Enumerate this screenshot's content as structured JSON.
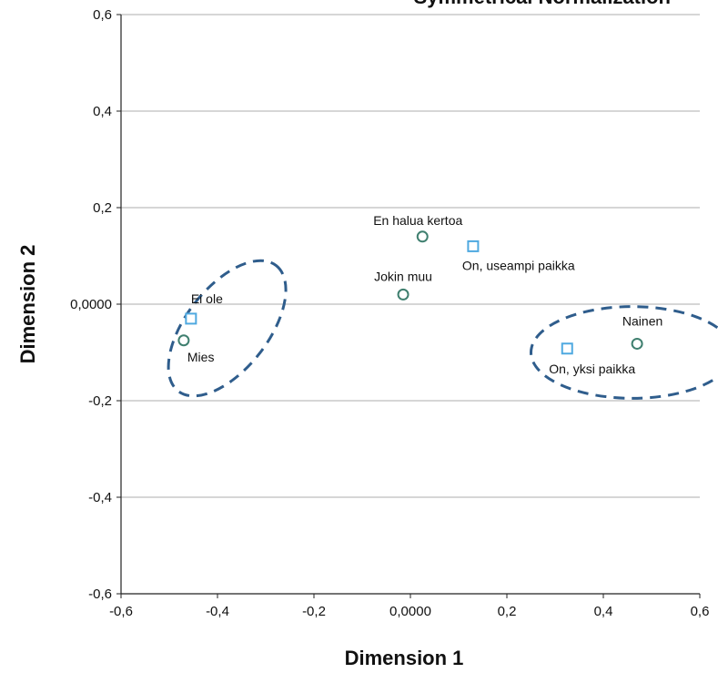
{
  "chart_data": {
    "type": "scatter",
    "title": "Symmetrical Normalization",
    "xlabel": "Dimension 1",
    "ylabel": "Dimension 2",
    "xlim": [
      -0.6,
      0.6
    ],
    "ylim": [
      -0.6,
      0.6
    ],
    "x_ticks": [
      "-0,6",
      "-0,4",
      "-0,2",
      "0,0000",
      "0,2",
      "0,4",
      "0,6"
    ],
    "y_ticks": [
      "0,6",
      "0,4",
      "0,2",
      "0,0000",
      "-0,2",
      "-0,4",
      "-0,6"
    ],
    "grid": "horizontal",
    "series": [
      {
        "marker": "circle",
        "color": "#3f7f6f",
        "points": [
          {
            "label": "Mies",
            "x": -0.47,
            "y": -0.075
          },
          {
            "label": "En halua kertoa",
            "x": 0.025,
            "y": 0.14
          },
          {
            "label": "Jokin muu",
            "x": -0.015,
            "y": 0.02
          },
          {
            "label": "Nainen",
            "x": 0.47,
            "y": -0.082
          }
        ]
      },
      {
        "marker": "square",
        "color": "#4fa9e0",
        "points": [
          {
            "label": "Ei ole",
            "x": -0.455,
            "y": -0.03
          },
          {
            "label": "On, useampi paikka",
            "x": 0.13,
            "y": 0.12
          },
          {
            "label": "On, yksi paikka",
            "x": 0.325,
            "y": -0.092
          }
        ]
      }
    ],
    "annotations": [
      {
        "type": "dashed-ellipse",
        "color": "#2f5d8c",
        "cx": -0.38,
        "cy": -0.05,
        "rx": 0.165,
        "ry": 0.085,
        "rotation_deg": -52
      },
      {
        "type": "dashed-ellipse",
        "color": "#2f5d8c",
        "cx": 0.46,
        "cy": -0.1,
        "rx": 0.21,
        "ry": 0.095,
        "rotation_deg": 0
      }
    ]
  }
}
